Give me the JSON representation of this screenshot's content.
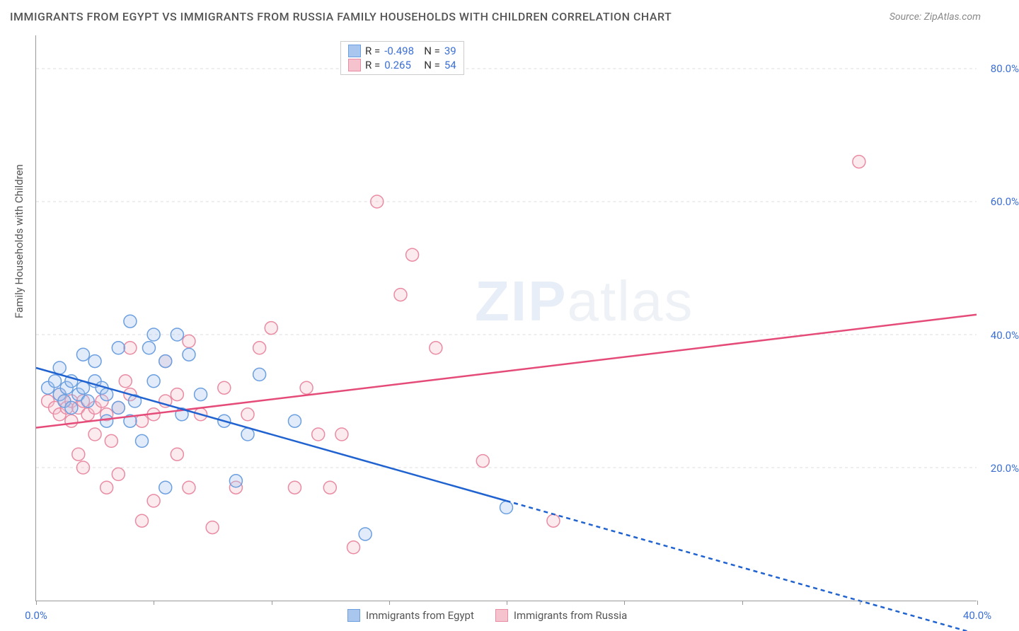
{
  "title": "IMMIGRANTS FROM EGYPT VS IMMIGRANTS FROM RUSSIA FAMILY HOUSEHOLDS WITH CHILDREN CORRELATION CHART",
  "source": "Source: ZipAtlas.com",
  "watermark_bold": "ZIP",
  "watermark_light": "atlas",
  "y_axis_title": "Family Households with Children",
  "chart": {
    "type": "scatter",
    "xlim": [
      0,
      40
    ],
    "ylim": [
      0,
      85
    ],
    "x_ticks": [
      0,
      5,
      10,
      15,
      20,
      25,
      30,
      35,
      40
    ],
    "x_tick_labels": {
      "0": "0.0%",
      "40": "40.0%"
    },
    "y_gridlines": [
      20,
      40,
      60,
      80
    ],
    "y_tick_labels": {
      "20": "20.0%",
      "40": "40.0%",
      "60": "60.0%",
      "80": "80.0%"
    },
    "background_color": "#ffffff",
    "grid_color": "#dcdcdc",
    "marker_radius": 9,
    "marker_stroke_width": 1.5,
    "marker_fill_opacity": 0.35,
    "line_width": 2.5
  },
  "series": {
    "egypt": {
      "label": "Immigrants from Egypt",
      "color_fill": "#a9c7ee",
      "color_stroke": "#6b9fe0",
      "line_color": "#1f62d0",
      "R": "-0.498",
      "N": "39",
      "trend": {
        "x1": 0,
        "y1": 35,
        "x2_solid": 20,
        "y2_solid": 15,
        "x2": 40,
        "y2": -5
      },
      "points": [
        [
          0.5,
          32
        ],
        [
          0.8,
          33
        ],
        [
          1.0,
          31
        ],
        [
          1.0,
          35
        ],
        [
          1.2,
          30
        ],
        [
          1.3,
          32
        ],
        [
          1.5,
          33
        ],
        [
          1.5,
          29
        ],
        [
          1.8,
          31
        ],
        [
          2.0,
          37
        ],
        [
          2.0,
          32
        ],
        [
          2.2,
          30
        ],
        [
          2.5,
          33
        ],
        [
          2.5,
          36
        ],
        [
          2.8,
          32
        ],
        [
          3.0,
          27
        ],
        [
          3.0,
          31
        ],
        [
          3.5,
          29
        ],
        [
          3.5,
          38
        ],
        [
          4.0,
          42
        ],
        [
          4.0,
          27
        ],
        [
          4.2,
          30
        ],
        [
          4.5,
          24
        ],
        [
          4.8,
          38
        ],
        [
          5.0,
          33
        ],
        [
          5.0,
          40
        ],
        [
          5.5,
          36
        ],
        [
          5.5,
          17
        ],
        [
          6.0,
          40
        ],
        [
          6.2,
          28
        ],
        [
          6.5,
          37
        ],
        [
          7.0,
          31
        ],
        [
          8.0,
          27
        ],
        [
          8.5,
          18
        ],
        [
          9.0,
          25
        ],
        [
          9.5,
          34
        ],
        [
          11.0,
          27
        ],
        [
          14.0,
          10
        ],
        [
          20.0,
          14
        ]
      ]
    },
    "russia": {
      "label": "Immigrants from Russia",
      "color_fill": "#f4c3cd",
      "color_stroke": "#e98ba3",
      "line_color": "#e54b78",
      "R": "0.265",
      "N": "54",
      "trend": {
        "x1": 0,
        "y1": 26,
        "x2": 40,
        "y2": 43
      },
      "points": [
        [
          0.5,
          30
        ],
        [
          0.8,
          29
        ],
        [
          1.0,
          31
        ],
        [
          1.0,
          28
        ],
        [
          1.2,
          30
        ],
        [
          1.3,
          29
        ],
        [
          1.5,
          30
        ],
        [
          1.5,
          27
        ],
        [
          1.8,
          29
        ],
        [
          1.8,
          22
        ],
        [
          2.0,
          30
        ],
        [
          2.0,
          20
        ],
        [
          2.2,
          28
        ],
        [
          2.5,
          29
        ],
        [
          2.5,
          25
        ],
        [
          2.8,
          30
        ],
        [
          3.0,
          28
        ],
        [
          3.0,
          17
        ],
        [
          3.2,
          24
        ],
        [
          3.5,
          29
        ],
        [
          3.5,
          19
        ],
        [
          3.8,
          33
        ],
        [
          4.0,
          38
        ],
        [
          4.0,
          31
        ],
        [
          4.5,
          12
        ],
        [
          4.5,
          27
        ],
        [
          5.0,
          28
        ],
        [
          5.0,
          15
        ],
        [
          5.5,
          30
        ],
        [
          5.5,
          36
        ],
        [
          6.0,
          22
        ],
        [
          6.0,
          31
        ],
        [
          6.5,
          17
        ],
        [
          6.5,
          39
        ],
        [
          7.0,
          28
        ],
        [
          7.5,
          11
        ],
        [
          8.0,
          32
        ],
        [
          8.5,
          17
        ],
        [
          9.0,
          28
        ],
        [
          9.5,
          38
        ],
        [
          10.0,
          41
        ],
        [
          11.0,
          17
        ],
        [
          11.5,
          32
        ],
        [
          12.0,
          25
        ],
        [
          12.5,
          17
        ],
        [
          13.0,
          25
        ],
        [
          13.5,
          8
        ],
        [
          14.5,
          60
        ],
        [
          15.5,
          46
        ],
        [
          16.0,
          52
        ],
        [
          17.0,
          38
        ],
        [
          19.0,
          21
        ],
        [
          22.0,
          12
        ],
        [
          35.0,
          66
        ]
      ]
    }
  },
  "legend_top": {
    "r_label": "R =",
    "n_label": "N ="
  }
}
